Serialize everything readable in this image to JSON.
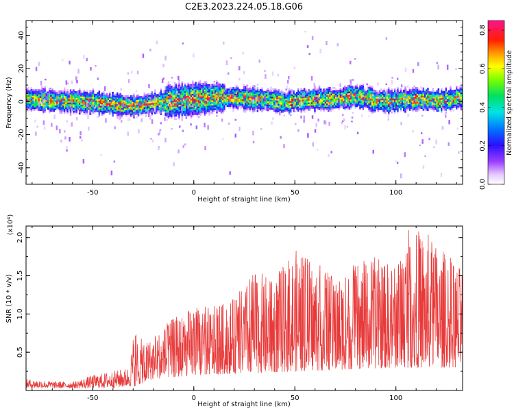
{
  "title": "C2E3.2023.224.05.18.G06",
  "chart_data": [
    {
      "type": "heatmap",
      "xlabel": "Height of straight line (km)",
      "ylabel": "Frequency (Hz)",
      "xlim": [
        -83,
        133
      ],
      "ylim": [
        -50,
        49
      ],
      "x_ticks": [
        -50,
        0,
        50,
        100
      ],
      "y_ticks": [
        -40,
        -20,
        0,
        20,
        40
      ],
      "colorbar": {
        "label": "Normalized spectral amplitude",
        "range": [
          0,
          0.85
        ],
        "ticks": [
          0.0,
          0.2,
          0.4,
          0.6,
          0.8
        ],
        "tick_labels": [
          "0.0",
          "0.2",
          "0.4",
          "0.6",
          "0.8"
        ],
        "colormap": "rainbow (white-violet-blue-cyan-green-yellow-orange-red-magenta)"
      },
      "band_center": [
        [
          -83,
          1
        ],
        [
          -70,
          0
        ],
        [
          -60,
          -0.5
        ],
        [
          -50,
          -1
        ],
        [
          -40,
          -2
        ],
        [
          -35,
          -3
        ],
        [
          -30,
          -3
        ],
        [
          -20,
          -1.5
        ],
        [
          -10,
          0
        ],
        [
          0,
          1
        ],
        [
          10,
          2
        ],
        [
          20,
          2
        ],
        [
          30,
          1
        ],
        [
          40,
          0
        ],
        [
          45,
          -1
        ],
        [
          50,
          0
        ],
        [
          60,
          1
        ],
        [
          70,
          1
        ],
        [
          80,
          3
        ],
        [
          90,
          0
        ],
        [
          100,
          0
        ],
        [
          110,
          1
        ],
        [
          120,
          0
        ],
        [
          133,
          2
        ]
      ],
      "band_halfwidth_hz": 4,
      "grid": false
    },
    {
      "type": "line",
      "xlabel": "Height of straight line (km)",
      "ylabel": "SNR (10 * v/v)",
      "y_multiplier": "(x10⁴)",
      "xlim": [
        -83,
        133
      ],
      "ylim": [
        0,
        2.15
      ],
      "x_ticks": [
        -50,
        0,
        50,
        100
      ],
      "y_ticks": [
        0.5,
        1.0,
        1.5,
        2.0
      ],
      "y_tick_labels": [
        "0.5",
        "1.0",
        "1.5",
        "2.0"
      ],
      "series_color": "#e83a3a",
      "envelope": [
        [
          -83,
          0.15
        ],
        [
          -70,
          0.12
        ],
        [
          -60,
          0.11
        ],
        [
          -50,
          0.2
        ],
        [
          -40,
          0.25
        ],
        [
          -32,
          0.3
        ],
        [
          -29,
          0.9
        ],
        [
          -25,
          0.6
        ],
        [
          -10,
          0.95
        ],
        [
          0,
          1.1
        ],
        [
          10,
          1.1
        ],
        [
          20,
          1.2
        ],
        [
          30,
          1.55
        ],
        [
          40,
          1.5
        ],
        [
          50,
          1.85
        ],
        [
          60,
          1.7
        ],
        [
          70,
          1.5
        ],
        [
          80,
          1.65
        ],
        [
          90,
          1.75
        ],
        [
          100,
          1.65
        ],
        [
          105,
          2.15
        ],
        [
          115,
          2.1
        ],
        [
          125,
          1.8
        ],
        [
          133,
          1.6
        ]
      ],
      "floor": [
        [
          -83,
          0.03
        ],
        [
          -40,
          0.03
        ],
        [
          -30,
          0.05
        ],
        [
          -20,
          0.15
        ],
        [
          0,
          0.2
        ],
        [
          50,
          0.25
        ],
        [
          100,
          0.3
        ],
        [
          133,
          0.3
        ]
      ],
      "grid": false
    }
  ]
}
